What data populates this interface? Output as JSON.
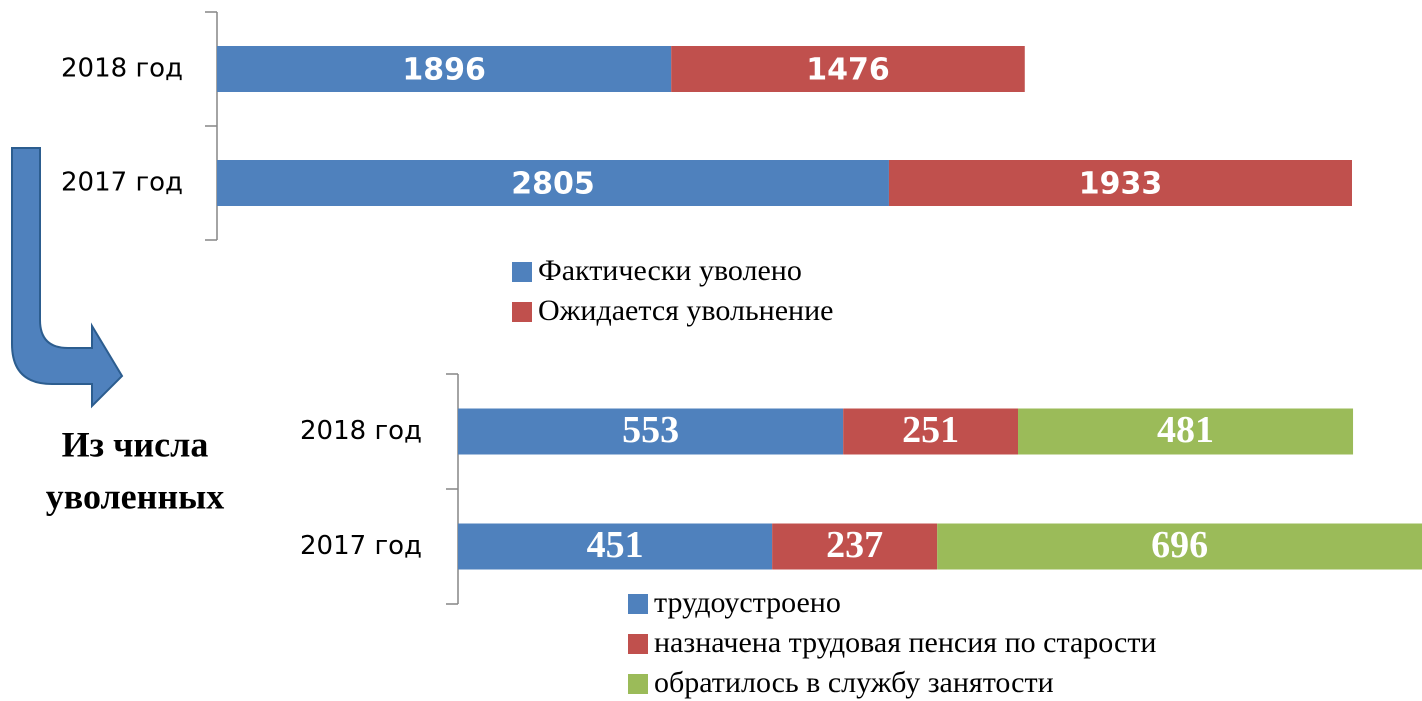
{
  "chart_data": [
    {
      "type": "stacked-bar-horizontal",
      "categories": [
        "2018 год",
        "2017 год"
      ],
      "series": [
        {
          "name": "Фактически уволено",
          "color": "#4f81bd",
          "values": [
            1896,
            2805
          ]
        },
        {
          "name": "Ожидается увольнение",
          "color": "#c0504d",
          "values": [
            1476,
            1933
          ]
        }
      ]
    },
    {
      "type": "stacked-bar-horizontal",
      "categories": [
        "2018 год",
        "2017 год"
      ],
      "series": [
        {
          "name": "трудоустроено",
          "color": "#4f81bd",
          "values": [
            553,
            451
          ]
        },
        {
          "name": "назначена трудовая пенсия по старости",
          "color": "#c0504d",
          "values": [
            251,
            237
          ]
        },
        {
          "name": "обратилось в службу занятости",
          "color": "#9bbb59",
          "values": [
            481,
            696
          ]
        }
      ]
    }
  ],
  "caption": [
    "Из числа",
    "уволенных"
  ]
}
